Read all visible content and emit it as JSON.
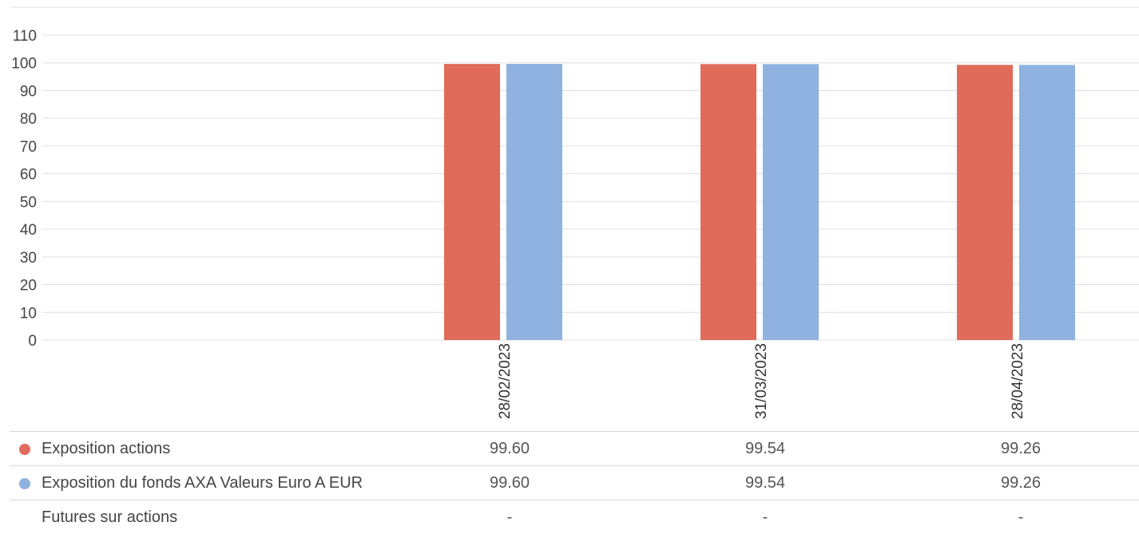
{
  "chart_data": {
    "type": "bar",
    "categories": [
      "28/02/2023",
      "31/03/2023",
      "28/04/2023"
    ],
    "series": [
      {
        "name": "Exposition actions",
        "color": "#e06b5a",
        "values": [
          99.6,
          99.54,
          99.26
        ]
      },
      {
        "name": "Exposition du fonds AXA Valeurs Euro A EUR",
        "color": "#8fb2e0",
        "values": [
          99.6,
          99.54,
          99.26
        ]
      }
    ],
    "ylim": [
      0,
      110
    ],
    "yticks": [
      "0",
      "10",
      "20",
      "30",
      "40",
      "50",
      "60",
      "70",
      "80",
      "90",
      "100",
      "110"
    ],
    "grid": true,
    "legend": "bottom-table"
  },
  "table": {
    "rows": [
      {
        "label": "Exposition actions",
        "color": "#e06b5a",
        "cells": [
          "99.60",
          "99.54",
          "99.26"
        ]
      },
      {
        "label": "Exposition du fonds AXA Valeurs Euro A EUR",
        "color": "#8fb2e0",
        "cells": [
          "99.60",
          "99.54",
          "99.26"
        ]
      },
      {
        "label": "Futures sur actions",
        "color": "",
        "cells": [
          "-",
          "-",
          "-"
        ]
      }
    ]
  }
}
